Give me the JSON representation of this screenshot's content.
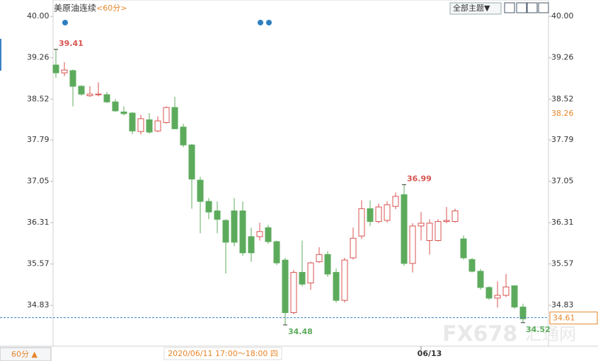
{
  "chart_data": {
    "type": "candlestick",
    "title": "美原油连续",
    "period": "<60分>",
    "theme_button": "全部主题▼",
    "period_button": "60分 ▲",
    "crosshair_label": "2020/06/11 17:00～18:00 四",
    "categories": [
      null,
      null,
      null,
      null,
      null,
      null,
      null,
      null,
      null,
      null,
      null,
      null,
      null,
      null,
      null,
      null,
      null,
      null,
      null,
      null,
      null,
      null,
      null,
      null,
      null,
      null,
      null,
      null,
      null,
      null,
      null,
      null,
      null,
      null,
      null,
      null,
      null,
      null,
      null,
      null,
      null,
      null,
      null,
      null,
      "06/13",
      null,
      null,
      null,
      null,
      null,
      null,
      null,
      null,
      null,
      null,
      null
    ],
    "open": [
      39.13,
      38.99,
      39.03,
      38.75,
      38.58,
      38.6,
      38.6,
      38.47,
      38.29,
      38.27,
      37.94,
      38.15,
      37.95,
      38.1,
      38.37,
      38.02,
      37.7,
      37.07,
      36.69,
      36.52,
      36.35,
      36.52,
      36.52,
      36.06,
      36.06,
      36.22,
      35.97,
      35.64,
      34.7,
      35.42,
      35.23,
      35.61,
      35.74,
      35.42,
      34.92,
      35.68,
      36.07,
      36.56,
      36.33,
      36.35,
      36.6,
      36.81,
      35.58,
      36.25,
      35.99,
      35.99,
      36.33,
      36.33,
      36.02,
      35.65,
      35.44,
      35.15,
      34.96,
      35.01,
      35.18,
      34.8
    ],
    "high": [
      39.41,
      39.18,
      39.05,
      38.77,
      38.75,
      38.82,
      38.65,
      38.52,
      38.39,
      38.29,
      38.24,
      38.27,
      38.21,
      38.39,
      38.56,
      38.08,
      37.72,
      37.13,
      36.75,
      36.69,
      36.37,
      36.75,
      36.69,
      36.22,
      36.31,
      36.27,
      35.99,
      35.68,
      35.46,
      35.99,
      35.61,
      35.87,
      35.8,
      35.49,
      35.68,
      36.22,
      36.71,
      36.71,
      36.65,
      36.69,
      36.85,
      36.99,
      36.3,
      36.5,
      36.37,
      36.37,
      36.59,
      36.56,
      36.08,
      35.68,
      35.48,
      35.17,
      35.26,
      35.39,
      35.18,
      34.86
    ],
    "low": [
      38.9,
      38.93,
      38.39,
      38.58,
      38.56,
      38.57,
      38.45,
      38.29,
      38.23,
      37.89,
      37.89,
      37.9,
      37.93,
      38.08,
      37.98,
      37.66,
      36.56,
      36.12,
      36.37,
      36.12,
      35.4,
      35.89,
      35.72,
      35.61,
      35.99,
      35.93,
      35.55,
      34.48,
      34.67,
      35.17,
      35.11,
      35.59,
      35.34,
      34.88,
      34.88,
      35.65,
      36.02,
      36.25,
      36.3,
      36.31,
      36.55,
      35.54,
      35.42,
      35.99,
      35.74,
      35.97,
      36.3,
      36.31,
      35.65,
      35.42,
      35.11,
      34.93,
      34.79,
      34.98,
      34.77,
      34.52
    ],
    "close": [
      38.99,
      39.04,
      38.75,
      38.61,
      38.61,
      38.61,
      38.47,
      38.31,
      38.26,
      37.95,
      38.17,
      37.93,
      38.13,
      38.37,
      37.99,
      37.7,
      37.09,
      36.69,
      36.5,
      36.37,
      35.96,
      35.96,
      35.77,
      35.77,
      36.15,
      35.97,
      35.59,
      34.7,
      35.42,
      35.21,
      35.59,
      35.74,
      35.39,
      34.92,
      35.64,
      36.03,
      36.56,
      36.33,
      36.59,
      36.63,
      36.78,
      35.58,
      36.25,
      36.3,
      36.3,
      36.33,
      36.35,
      36.52,
      35.68,
      35.44,
      35.15,
      34.96,
      35.01,
      35.16,
      34.8,
      34.59
    ],
    "up_color": "#d9534f",
    "down_color": "#5cab5c",
    "ylim": [
      34.1,
      40.23
    ],
    "yticks": [
      {
        "value": 40,
        "label": "40.00"
      },
      39.26,
      38.52,
      37.79,
      37.05,
      36.31,
      35.57,
      34.83
    ],
    "reference_price": 38.26,
    "last_price": 34.61,
    "watermark": [
      "FX678",
      "汇通网"
    ]
  }
}
